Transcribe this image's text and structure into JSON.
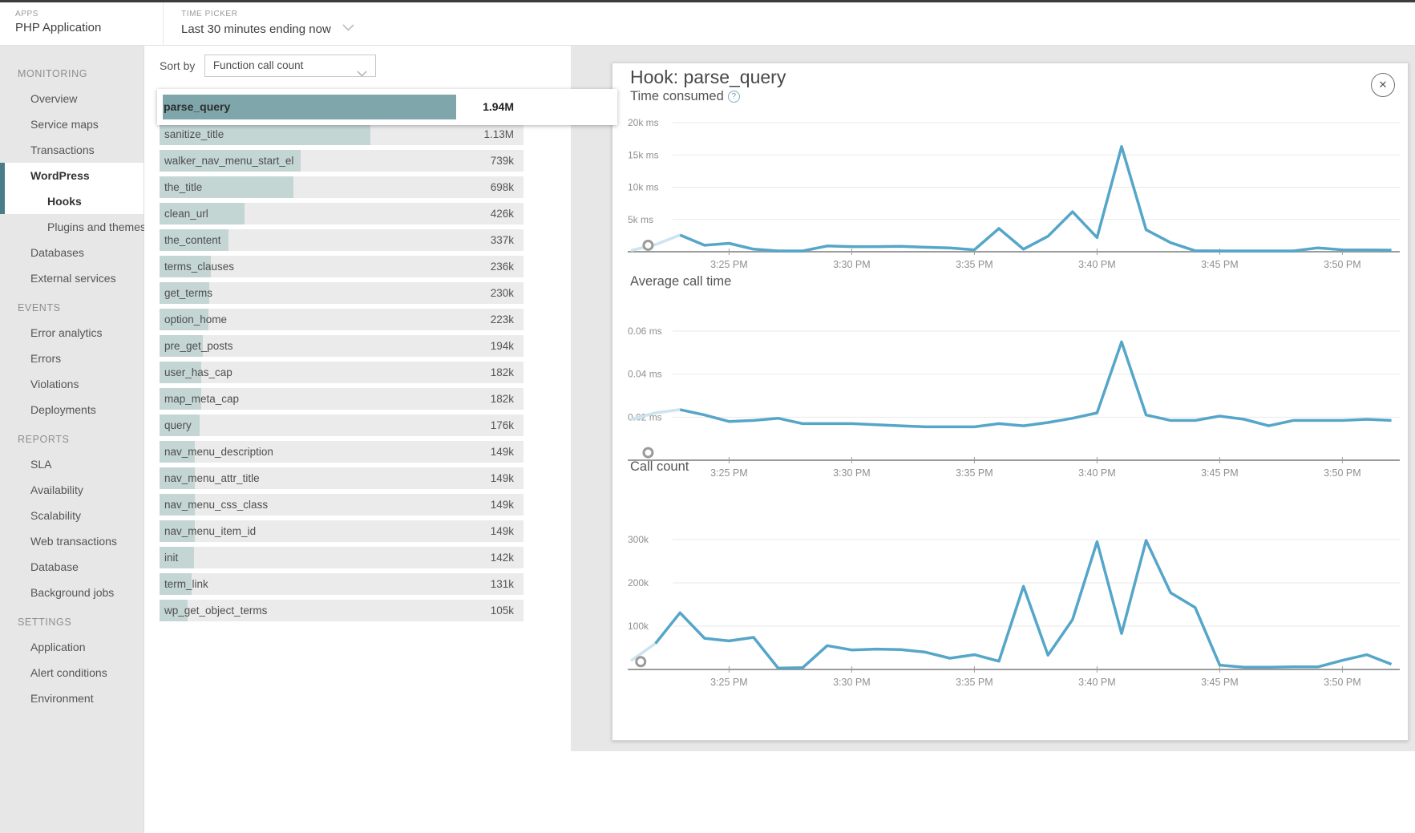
{
  "topbar": {
    "apps_label": "APPS",
    "app_name": "PHP Application",
    "time_picker_label": "TIME PICKER",
    "time_picker_value": "Last 30 minutes ending now"
  },
  "sidebar": {
    "sections": [
      {
        "title": "MONITORING",
        "items": [
          {
            "label": "Overview"
          },
          {
            "label": "Service maps"
          },
          {
            "label": "Transactions"
          },
          {
            "label": "WordPress",
            "active": true
          },
          {
            "label": "Hooks",
            "active": true,
            "indent": 1
          },
          {
            "label": "Plugins and themes",
            "indent": 1
          },
          {
            "label": "Databases"
          },
          {
            "label": "External services"
          }
        ]
      },
      {
        "title": "EVENTS",
        "items": [
          {
            "label": "Error analytics"
          },
          {
            "label": "Errors"
          },
          {
            "label": "Violations"
          },
          {
            "label": "Deployments"
          }
        ]
      },
      {
        "title": "REPORTS",
        "items": [
          {
            "label": "SLA"
          },
          {
            "label": "Availability"
          },
          {
            "label": "Scalability"
          },
          {
            "label": "Web transactions"
          },
          {
            "label": "Database"
          },
          {
            "label": "Background jobs"
          }
        ]
      },
      {
        "title": "SETTINGS",
        "items": [
          {
            "label": "Application"
          },
          {
            "label": "Alert conditions"
          },
          {
            "label": "Environment"
          }
        ]
      }
    ]
  },
  "list": {
    "sort_by_label": "Sort by",
    "sort_value": "Function call count",
    "max_value": 1940000,
    "rows": [
      {
        "name": "parse_query",
        "value": 1940000,
        "display": "1.94M",
        "selected": true
      },
      {
        "name": "sanitize_title",
        "value": 1130000,
        "display": "1.13M"
      },
      {
        "name": "walker_nav_menu_start_el",
        "value": 739000,
        "display": "739k"
      },
      {
        "name": "the_title",
        "value": 698000,
        "display": "698k"
      },
      {
        "name": "clean_url",
        "value": 426000,
        "display": "426k"
      },
      {
        "name": "the_content",
        "value": 337000,
        "display": "337k"
      },
      {
        "name": "terms_clauses",
        "value": 236000,
        "display": "236k"
      },
      {
        "name": "get_terms",
        "value": 230000,
        "display": "230k"
      },
      {
        "name": "option_home",
        "value": 223000,
        "display": "223k"
      },
      {
        "name": "pre_get_posts",
        "value": 194000,
        "display": "194k"
      },
      {
        "name": "user_has_cap",
        "value": 182000,
        "display": "182k"
      },
      {
        "name": "map_meta_cap",
        "value": 182000,
        "display": "182k"
      },
      {
        "name": "query",
        "value": 176000,
        "display": "176k"
      },
      {
        "name": "nav_menu_description",
        "value": 149000,
        "display": "149k"
      },
      {
        "name": "nav_menu_attr_title",
        "value": 149000,
        "display": "149k"
      },
      {
        "name": "nav_menu_css_class",
        "value": 149000,
        "display": "149k"
      },
      {
        "name": "nav_menu_item_id",
        "value": 149000,
        "display": "149k"
      },
      {
        "name": "init",
        "value": 142000,
        "display": "142k"
      },
      {
        "name": "term_link",
        "value": 131000,
        "display": "131k"
      },
      {
        "name": "wp_get_object_terms",
        "value": 105000,
        "display": "105k"
      }
    ]
  },
  "panel": {
    "title": "Hook: parse_query",
    "close_label": "✕"
  },
  "chart_data": [
    {
      "type": "line",
      "title": "Time consumed",
      "has_help_icon": true,
      "unit": "ms",
      "x_start_minute": 21,
      "x_step": 1,
      "x_tick_minutes": [
        25,
        30,
        35,
        40,
        45,
        50
      ],
      "x_tick_labels": [
        "3:25 PM",
        "3:30 PM",
        "3:35 PM",
        "3:40 PM",
        "3:45 PM",
        "3:50 PM"
      ],
      "y_ticks": [
        5000,
        10000,
        15000,
        20000
      ],
      "y_tick_labels": [
        "5k ms",
        "10k ms",
        "15k ms",
        "20k ms"
      ],
      "values": [
        200,
        1100,
        2600,
        1000,
        1300,
        400,
        80,
        80,
        900,
        800,
        800,
        850,
        700,
        600,
        300,
        3600,
        400,
        2400,
        6200,
        2200,
        16300,
        3400,
        1400,
        150,
        100,
        100,
        100,
        120,
        600,
        300,
        280,
        250
      ],
      "light_until_index": 2,
      "marker": {
        "minute": 21.7,
        "value": 1000
      }
    },
    {
      "type": "line",
      "title": "Average call time",
      "has_help_icon": false,
      "unit": "ms",
      "x_start_minute": 21,
      "x_step": 1,
      "x_tick_minutes": [
        25,
        30,
        35,
        40,
        45,
        50
      ],
      "x_tick_labels": [
        "3:25 PM",
        "3:30 PM",
        "3:35 PM",
        "3:40 PM",
        "3:45 PM",
        "3:50 PM"
      ],
      "y_ticks": [
        0.02,
        0.04,
        0.06
      ],
      "y_tick_labels": [
        "0.02 ms",
        "0.04 ms",
        "0.06 ms"
      ],
      "values": [
        0.019,
        0.022,
        0.0235,
        0.021,
        0.018,
        0.0185,
        0.0195,
        0.017,
        0.017,
        0.017,
        0.0165,
        0.016,
        0.0155,
        0.0155,
        0.0155,
        0.017,
        0.016,
        0.0175,
        0.0195,
        0.022,
        0.055,
        0.021,
        0.0185,
        0.0185,
        0.0205,
        0.019,
        0.016,
        0.0185,
        0.0185,
        0.0185,
        0.019,
        0.0185
      ],
      "light_until_index": 2,
      "marker": {
        "minute": 21.7,
        "value": 0.0035
      }
    },
    {
      "type": "line",
      "title": "Call count",
      "has_help_icon": false,
      "unit": "calls",
      "x_start_minute": 21,
      "x_step": 1,
      "x_tick_minutes": [
        25,
        30,
        35,
        40,
        45,
        50
      ],
      "x_tick_labels": [
        "3:25 PM",
        "3:30 PM",
        "3:35 PM",
        "3:40 PM",
        "3:45 PM",
        "3:50 PM"
      ],
      "y_ticks": [
        100000,
        200000,
        300000
      ],
      "y_tick_labels": [
        "100k",
        "200k",
        "300k"
      ],
      "values": [
        20000,
        60000,
        131000,
        72000,
        66000,
        74000,
        3000,
        4000,
        55000,
        45000,
        47000,
        46000,
        40000,
        26000,
        34000,
        19000,
        192000,
        33000,
        115000,
        295000,
        83000,
        298000,
        177000,
        143000,
        10000,
        5000,
        5000,
        6000,
        6000,
        21000,
        34000,
        12000
      ],
      "light_until_index": 1,
      "marker": {
        "minute": 21.4,
        "value": 18000
      }
    }
  ],
  "colors": {
    "accent_teal": "#4a7d87",
    "bar_fill": "#c4d6d4",
    "bar_fill_selected": "#7fa7ab",
    "line_blue": "#55a6c8",
    "line_blue_light": "#cde3ee",
    "grid": "#e9e9e9",
    "axis": "#9c9c9c",
    "tick_text": "#8f8f8f"
  }
}
